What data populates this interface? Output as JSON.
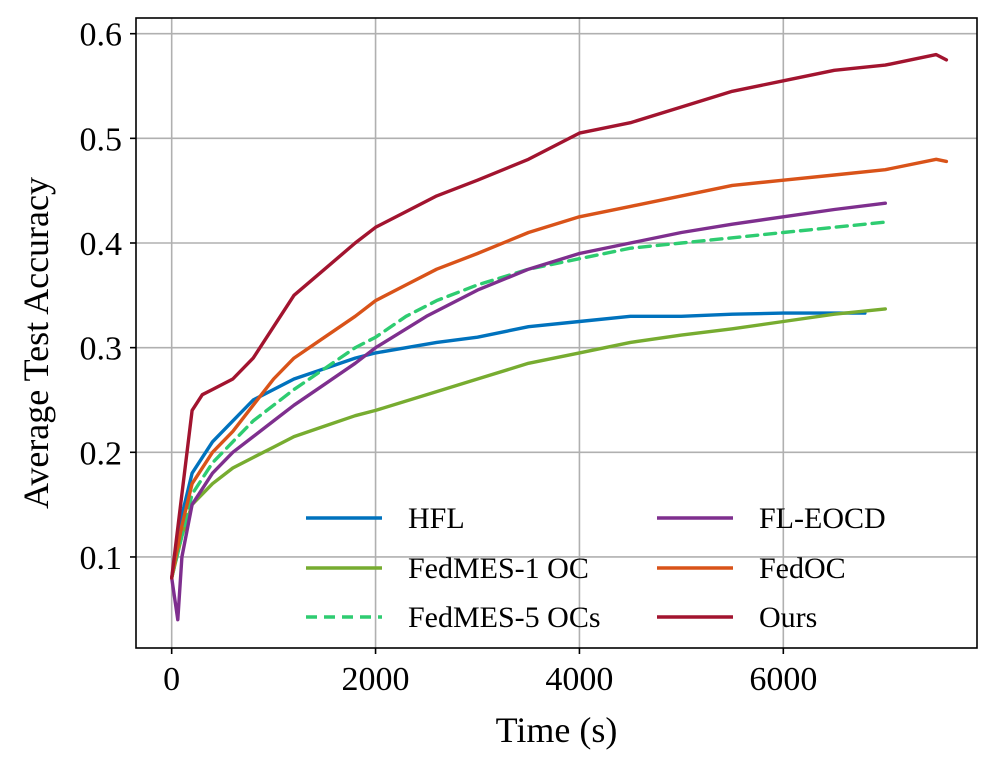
{
  "chart_data": {
    "type": "line",
    "title": "",
    "xlabel": "Time (s)",
    "ylabel": "Average Test Accuracy",
    "xlim": [
      -350,
      7900
    ],
    "ylim": [
      0.013,
      0.615
    ],
    "grid": true,
    "legend_position": "lower-right",
    "legend_columns": 2,
    "x_ticks": [
      {
        "value": 0,
        "label": "0"
      },
      {
        "value": 2000,
        "label": "2000"
      },
      {
        "value": 4000,
        "label": "4000"
      },
      {
        "value": 6000,
        "label": "6000"
      }
    ],
    "y_ticks": [
      {
        "value": 0.1,
        "label": "0.1"
      },
      {
        "value": 0.2,
        "label": "0.2"
      },
      {
        "value": 0.3,
        "label": "0.3"
      },
      {
        "value": 0.4,
        "label": "0.4"
      },
      {
        "value": 0.5,
        "label": "0.5"
      },
      {
        "value": 0.6,
        "label": "0.6"
      }
    ],
    "series": [
      {
        "name": "HFL",
        "color": "#0072BD",
        "dash": "solid",
        "x": [
          0,
          100,
          200,
          400,
          600,
          800,
          1000,
          1200,
          1500,
          1800,
          2000,
          2300,
          2600,
          3000,
          3500,
          4000,
          4500,
          5000,
          5500,
          6000,
          6500,
          6800
        ],
        "y": [
          0.08,
          0.14,
          0.18,
          0.21,
          0.23,
          0.25,
          0.26,
          0.27,
          0.28,
          0.29,
          0.295,
          0.3,
          0.305,
          0.31,
          0.32,
          0.325,
          0.33,
          0.33,
          0.332,
          0.333,
          0.333,
          0.333
        ]
      },
      {
        "name": "FedMES-1 OC",
        "color": "#77AC30",
        "dash": "solid",
        "x": [
          0,
          100,
          200,
          400,
          600,
          800,
          1000,
          1200,
          1500,
          1800,
          2000,
          2500,
          3000,
          3500,
          4000,
          4500,
          5000,
          5500,
          6000,
          6500,
          7000
        ],
        "y": [
          0.08,
          0.12,
          0.15,
          0.17,
          0.185,
          0.195,
          0.205,
          0.215,
          0.225,
          0.235,
          0.24,
          0.255,
          0.27,
          0.285,
          0.295,
          0.305,
          0.312,
          0.318,
          0.325,
          0.332,
          0.337
        ]
      },
      {
        "name": "FedMES-5 OCs",
        "color": "#2ECC71",
        "dash": "dashed",
        "x": [
          0,
          100,
          200,
          400,
          600,
          800,
          1000,
          1200,
          1500,
          1800,
          2000,
          2300,
          2600,
          3000,
          3500,
          4000,
          4500,
          5000,
          5500,
          6000,
          6500,
          7000
        ],
        "y": [
          0.08,
          0.12,
          0.16,
          0.19,
          0.21,
          0.23,
          0.245,
          0.26,
          0.28,
          0.3,
          0.31,
          0.33,
          0.345,
          0.36,
          0.375,
          0.385,
          0.395,
          0.4,
          0.405,
          0.41,
          0.415,
          0.42
        ]
      },
      {
        "name": "FL-EOCD",
        "color": "#7E2F8E",
        "dash": "solid",
        "x": [
          0,
          60,
          100,
          200,
          400,
          600,
          800,
          1000,
          1200,
          1500,
          1800,
          2000,
          2500,
          3000,
          3500,
          4000,
          4500,
          5000,
          5500,
          6000,
          6500,
          7000
        ],
        "y": [
          0.08,
          0.04,
          0.1,
          0.15,
          0.18,
          0.2,
          0.215,
          0.23,
          0.245,
          0.265,
          0.285,
          0.3,
          0.33,
          0.355,
          0.375,
          0.39,
          0.4,
          0.41,
          0.418,
          0.425,
          0.432,
          0.438
        ]
      },
      {
        "name": "FedOC",
        "color": "#D95319",
        "dash": "solid",
        "x": [
          0,
          100,
          200,
          400,
          600,
          800,
          1000,
          1200,
          1500,
          1800,
          2000,
          2300,
          2600,
          3000,
          3500,
          4000,
          4500,
          5000,
          5500,
          6000,
          6500,
          7000,
          7500,
          7600
        ],
        "y": [
          0.08,
          0.13,
          0.17,
          0.2,
          0.22,
          0.245,
          0.27,
          0.29,
          0.31,
          0.33,
          0.345,
          0.36,
          0.375,
          0.39,
          0.41,
          0.425,
          0.435,
          0.445,
          0.455,
          0.46,
          0.465,
          0.47,
          0.48,
          0.478
        ]
      },
      {
        "name": "Ours",
        "color": "#A2142F",
        "dash": "solid",
        "x": [
          0,
          100,
          200,
          300,
          400,
          600,
          800,
          1000,
          1200,
          1500,
          1800,
          2000,
          2300,
          2600,
          3000,
          3500,
          4000,
          4500,
          5000,
          5500,
          6000,
          6500,
          7000,
          7500,
          7600
        ],
        "y": [
          0.08,
          0.16,
          0.24,
          0.255,
          0.26,
          0.27,
          0.29,
          0.32,
          0.35,
          0.375,
          0.4,
          0.415,
          0.43,
          0.445,
          0.46,
          0.48,
          0.505,
          0.515,
          0.53,
          0.545,
          0.555,
          0.565,
          0.57,
          0.58,
          0.575
        ]
      }
    ]
  }
}
